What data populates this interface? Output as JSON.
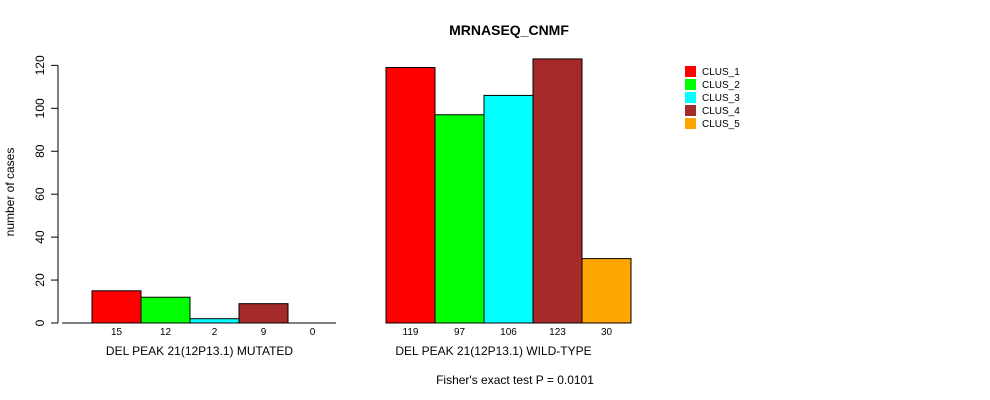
{
  "chart_data": {
    "type": "bar",
    "title": "MRNASEQ_CNMF",
    "ylabel": "number of cases",
    "ylim": [
      0,
      125
    ],
    "yticks": [
      0,
      20,
      40,
      60,
      80,
      100,
      120
    ],
    "grid": false,
    "legend_position": "top-right",
    "groups": [
      "DEL PEAK 21(12P13.1) MUTATED",
      "DEL PEAK 21(12P13.1) WILD-TYPE"
    ],
    "series": [
      {
        "name": "CLUS_1",
        "color": "#ff0000",
        "values": [
          15,
          119
        ]
      },
      {
        "name": "CLUS_2",
        "color": "#00ff00",
        "values": [
          12,
          97
        ]
      },
      {
        "name": "CLUS_3",
        "color": "#00ffff",
        "values": [
          2,
          106
        ]
      },
      {
        "name": "CLUS_4",
        "color": "#a52a2a",
        "values": [
          9,
          123
        ]
      },
      {
        "name": "CLUS_5",
        "color": "#ffa500",
        "values": [
          0,
          30
        ]
      }
    ],
    "footnote": "Fisher's exact test P = 0.0101"
  }
}
